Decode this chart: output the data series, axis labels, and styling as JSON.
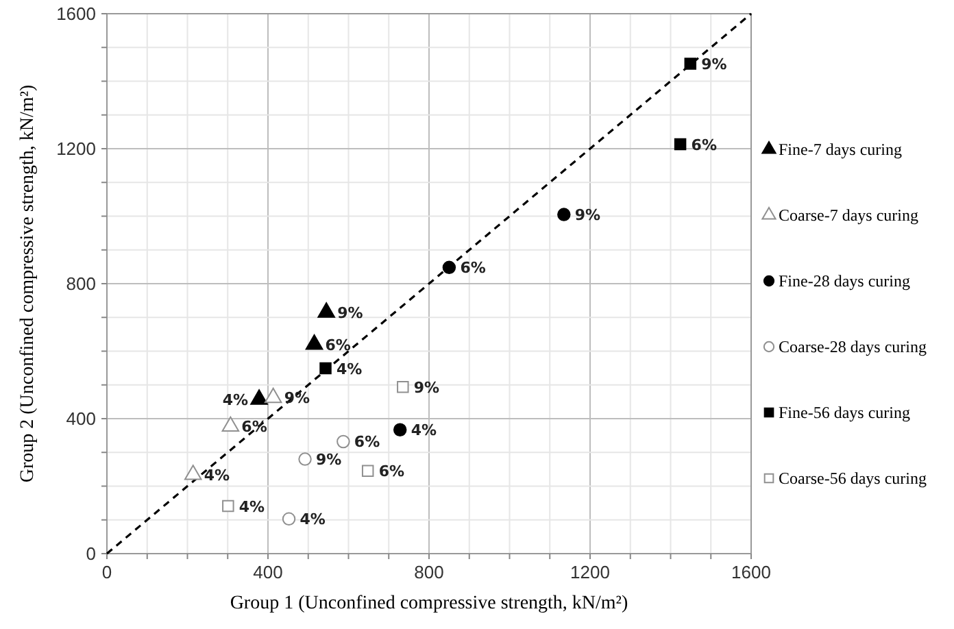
{
  "chart_data": {
    "type": "scatter",
    "xlabel": "Group 1 (Unconfined compressive strength, kN/m²)",
    "ylabel": "Group 2 (Unconfined compressive strength, kN/m²)",
    "xlim": [
      0,
      1600
    ],
    "xticks": [
      0,
      400,
      800,
      1200,
      1600
    ],
    "ylim": [
      0,
      1600
    ],
    "yticks": [
      0,
      400,
      800,
      1200,
      1600
    ],
    "grid": true,
    "legend": "right",
    "series": [
      {
        "name": "Fine-7 days curing",
        "color": "#000000",
        "marker": "triangle",
        "x": [
          378,
          515,
          545
        ],
        "values": [
          457,
          620,
          715
        ]
      },
      {
        "name": "Coarse-7 days curing",
        "color": "#ffffff",
        "marker": "triangle",
        "x": [
          214,
          307,
          413
        ],
        "values": [
          234,
          377,
          462
        ]
      },
      {
        "name": "Fine-28 days curing",
        "color": "#000000",
        "marker": "circle",
        "x": [
          728,
          850,
          1135
        ],
        "values": [
          367,
          848,
          1005
        ]
      },
      {
        "name": "Coarse-28 days curing",
        "color": "#ffffff",
        "marker": "circle",
        "x": [
          452,
          587,
          492
        ],
        "values": [
          103,
          332,
          280
        ]
      },
      {
        "name": "Fine-56 days curing",
        "color": "#000000",
        "marker": "square",
        "x": [
          543,
          1424,
          1449
        ],
        "values": [
          549,
          1213,
          1452
        ]
      },
      {
        "name": "Coarse-56 days curing",
        "color": "#ffffff",
        "marker": "square",
        "x": [
          301,
          648,
          735
        ],
        "values": [
          141,
          245,
          494
        ]
      },
      {
        "type": "line",
        "color": "#000000",
        "line_style": "dashed",
        "x": [
          0,
          1600
        ],
        "values": [
          0,
          1600
        ]
      }
    ],
    "annotations": [
      {
        "text": "4%",
        "x": 378,
        "y": 457
      },
      {
        "text": "6%",
        "x": 515,
        "y": 620
      },
      {
        "text": "9%",
        "x": 545,
        "y": 715
      },
      {
        "text": "4%",
        "x": 214,
        "y": 234
      },
      {
        "text": "6%",
        "x": 307,
        "y": 377
      },
      {
        "text": "9%",
        "x": 413,
        "y": 462
      },
      {
        "text": "4%",
        "x": 728,
        "y": 367
      },
      {
        "text": "6%",
        "x": 850,
        "y": 848
      },
      {
        "text": "9%",
        "x": 1135,
        "y": 1005
      },
      {
        "text": "4%",
        "x": 452,
        "y": 103
      },
      {
        "text": "6%",
        "x": 587,
        "y": 332
      },
      {
        "text": "9%",
        "x": 492,
        "y": 280
      },
      {
        "text": "4%",
        "x": 543,
        "y": 549
      },
      {
        "text": "6%",
        "x": 1424,
        "y": 1213
      },
      {
        "text": "9%",
        "x": 1449,
        "y": 1452
      },
      {
        "text": "4%",
        "x": 301,
        "y": 141
      },
      {
        "text": "6%",
        "x": 648,
        "y": 245
      },
      {
        "text": "9%",
        "x": 735,
        "y": 494
      }
    ]
  }
}
